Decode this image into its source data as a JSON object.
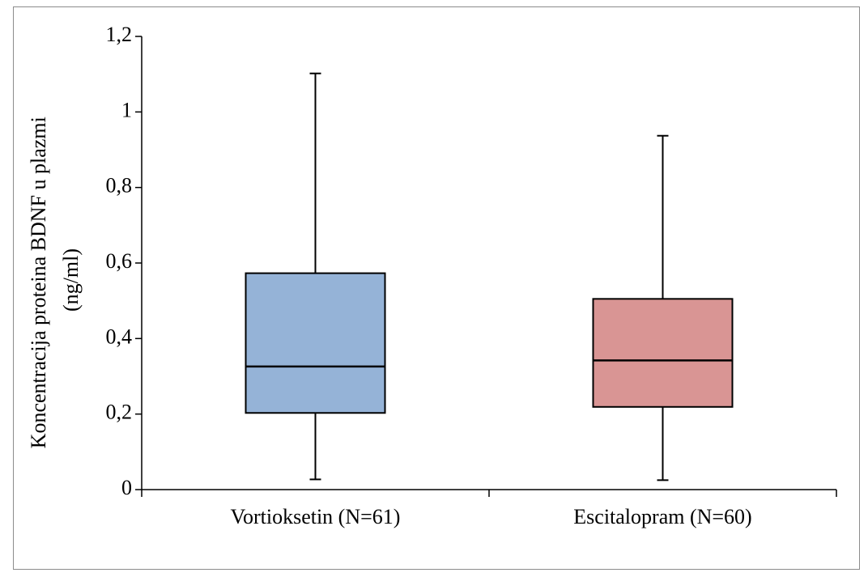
{
  "chart_data": {
    "type": "box",
    "title": "",
    "xlabel": "",
    "ylabel_lines": [
      "Koncentracija proteina BDNF u plazmi",
      "(ng/ml)"
    ],
    "ylim": [
      0,
      1.2
    ],
    "yticks": [
      {
        "value": 0,
        "label": "0"
      },
      {
        "value": 0.2,
        "label": "0,2"
      },
      {
        "value": 0.4,
        "label": "0,4"
      },
      {
        "value": 0.6,
        "label": "0,6"
      },
      {
        "value": 0.8,
        "label": "0,8"
      },
      {
        "value": 1.0,
        "label": "1"
      },
      {
        "value": 1.2,
        "label": "1,2"
      }
    ],
    "grid": false,
    "legend": "none",
    "categories": [
      "Vortioksetin (N=61)",
      "Escitalopram (N=60)"
    ],
    "boxes": [
      {
        "category": "Vortioksetin (N=61)",
        "min": 0.027,
        "q1": 0.203,
        "median": 0.326,
        "q3": 0.573,
        "max": 1.102,
        "color": "#95b3d7"
      },
      {
        "category": "Escitalopram (N=60)",
        "min": 0.025,
        "q1": 0.219,
        "median": 0.342,
        "q3": 0.505,
        "max": 0.937,
        "color": "#d99594"
      }
    ]
  }
}
